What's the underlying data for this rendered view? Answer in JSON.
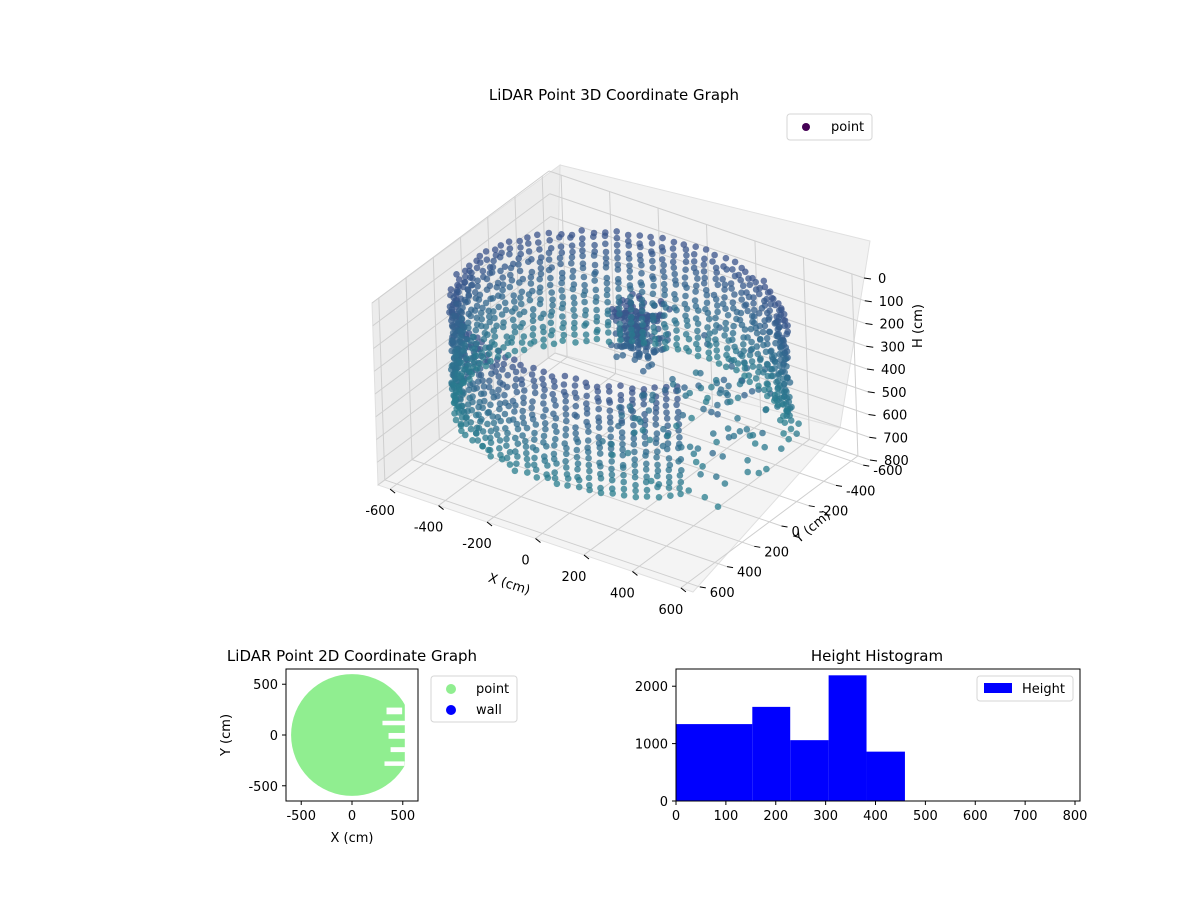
{
  "chart_data": [
    {
      "type": "scatter",
      "dimensions": 3,
      "title": "LiDAR Point 3D Coordinate Graph",
      "xlabel": "X (cm)",
      "ylabel": "Y (cm)",
      "zlabel": "H (cm)",
      "xlim": [
        -650,
        650
      ],
      "ylim": [
        -650,
        650
      ],
      "zlim": [
        0,
        800
      ],
      "z_axis_inverted": true,
      "x_ticks": [
        "-600",
        "-400",
        "-200",
        "0",
        "200",
        "400",
        "600"
      ],
      "y_ticks": [
        "-600",
        "-400",
        "-200",
        "0",
        "200",
        "400",
        "600"
      ],
      "z_ticks": [
        "0",
        "100",
        "200",
        "300",
        "400",
        "500",
        "600",
        "700",
        "800"
      ],
      "grid": true,
      "legend_position": "top-right",
      "colormap": "viridis",
      "series": [
        {
          "name": "point",
          "description_shape": "circular wall of points (radius ~600 cm, heights ~80-580 cm, open toward +X) with a dense central cluster",
          "ring_radius": 600,
          "ring_height_range": [
            80,
            580
          ],
          "central_cluster_height_range": [
            60,
            420
          ]
        }
      ]
    },
    {
      "type": "scatter",
      "title": "LiDAR Point 2D Coordinate Graph",
      "xlabel": "X (cm)",
      "ylabel": "Y (cm)",
      "xlim": [
        -650,
        650
      ],
      "ylim": [
        -650,
        650
      ],
      "x_ticks": [
        "-500",
        "0",
        "500"
      ],
      "y_ticks": [
        "500",
        "0",
        "-500"
      ],
      "grid": false,
      "legend_position": "outside-right",
      "series": [
        {
          "name": "point",
          "color": "#90ee90",
          "shape": "filled disk of radius ~600 cm, open toward +X"
        },
        {
          "name": "wall",
          "color": "#0000ff",
          "values": []
        }
      ]
    },
    {
      "type": "bar",
      "subtype": "histogram",
      "title": "Height Histogram",
      "xlim": [
        0,
        810
      ],
      "ylim": [
        0,
        2300
      ],
      "x_ticks": [
        "0",
        "100",
        "200",
        "300",
        "400",
        "500",
        "600",
        "700",
        "800"
      ],
      "y_ticks": [
        "0",
        "1000",
        "2000"
      ],
      "legend_position": "top-right",
      "series": [
        {
          "name": "Height",
          "color": "#0000ff",
          "bins": [
            {
              "start": 0,
              "end": 153,
              "count": 1340
            },
            {
              "start": 153,
              "end": 229,
              "count": 1640
            },
            {
              "start": 229,
              "end": 306,
              "count": 1060
            },
            {
              "start": 306,
              "end": 382,
              "count": 2190
            },
            {
              "start": 382,
              "end": 459,
              "count": 860
            },
            {
              "start": 459,
              "end": 810,
              "count": 0
            }
          ]
        }
      ]
    }
  ]
}
